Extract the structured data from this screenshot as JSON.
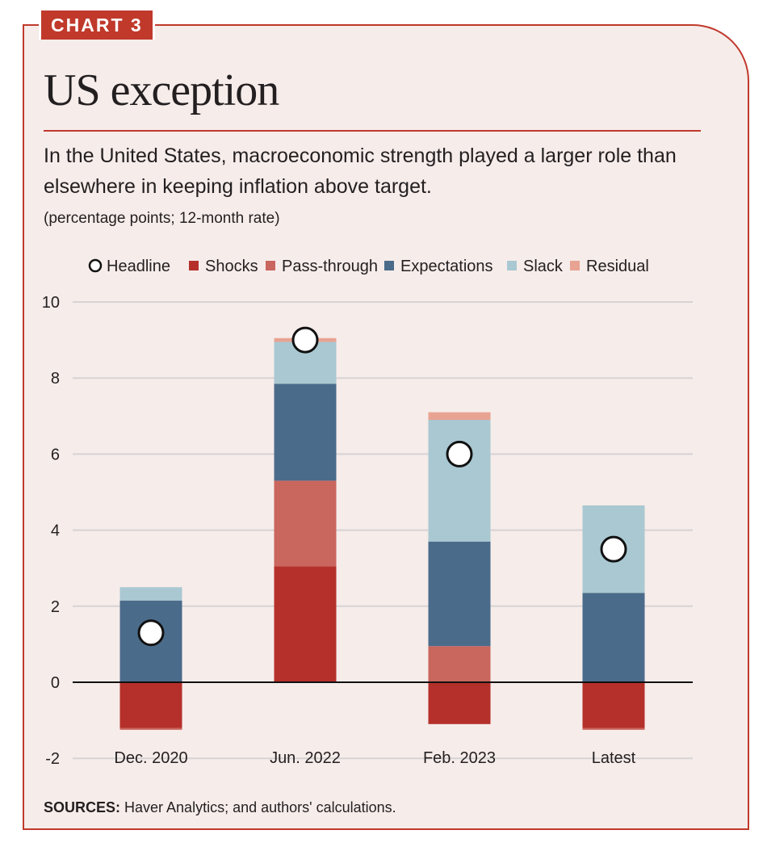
{
  "badge": "CHART 3",
  "title": "US exception",
  "subtitle": "In the United States, macroeconomic strength played a larger role than elsewhere in keeping inflation above target.",
  "units": "(percentage points; 12-month rate)",
  "sources_label": "SOURCES:",
  "sources_text": " Haver Analytics; and authors' calculations.",
  "colors": {
    "accent": "#c0392b",
    "shocks": "#b5302a",
    "pass_through": "#c9665d",
    "expectations": "#4b6b8a",
    "slack": "#a9c8d2",
    "residual": "#e8a392",
    "background": "#f6ecea"
  },
  "chart_data": {
    "type": "bar",
    "stacked": true,
    "categories": [
      "Dec. 2020",
      "Jun. 2022",
      "Feb. 2023",
      "Latest"
    ],
    "series": [
      {
        "name": "Shocks",
        "key": "shocks",
        "values": [
          -1.2,
          3.05,
          -1.1,
          -1.2
        ]
      },
      {
        "name": "Pass-through",
        "key": "pass_through",
        "values": [
          -0.05,
          2.25,
          0.95,
          -0.05
        ]
      },
      {
        "name": "Expectations",
        "key": "expectations",
        "values": [
          2.15,
          2.55,
          2.75,
          2.35
        ]
      },
      {
        "name": "Slack",
        "key": "slack",
        "values": [
          0.35,
          1.1,
          3.2,
          2.3
        ]
      },
      {
        "name": "Residual",
        "key": "residual",
        "values": [
          0.0,
          0.1,
          0.2,
          0.0
        ]
      }
    ],
    "headline": {
      "name": "Headline",
      "values": [
        1.3,
        9.0,
        6.0,
        3.5
      ]
    },
    "legend": [
      "Headline",
      "Shocks",
      "Pass-through",
      "Expectations",
      "Slack",
      "Residual"
    ],
    "yticks": [
      10,
      8,
      6,
      4,
      2,
      0,
      -2
    ],
    "ylim": [
      -2,
      10
    ],
    "grid": true,
    "legend_position": "top"
  }
}
